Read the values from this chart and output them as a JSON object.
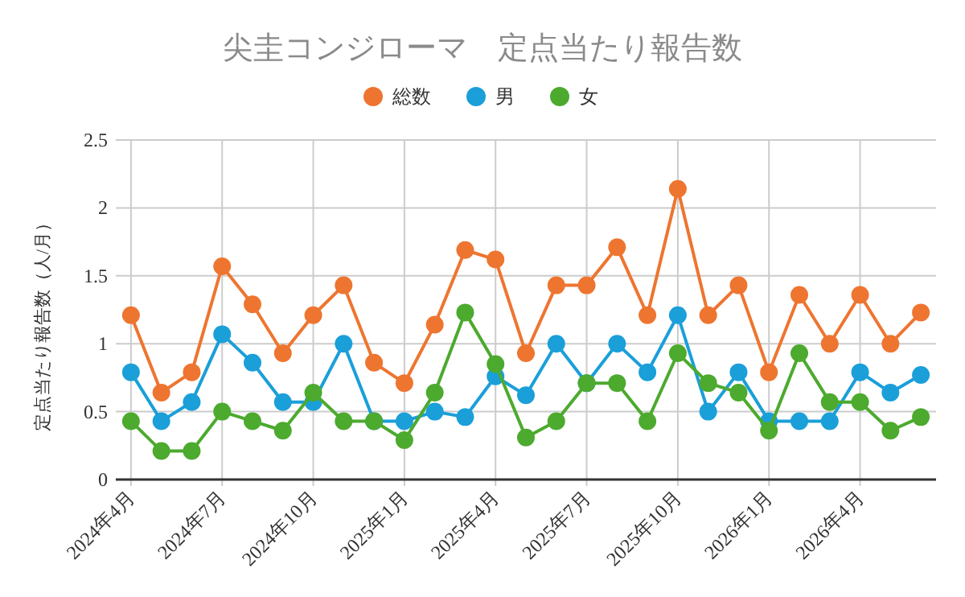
{
  "chart_data": {
    "type": "line",
    "title": "尖圭コンジローマ　定点当たり報告数",
    "ylabel": "定点当たり報告数（人/月）",
    "categories": [
      "2024年4月",
      null,
      null,
      "2024年7月",
      null,
      null,
      "2024年10月",
      null,
      null,
      "2025年1月",
      null,
      null,
      "2025年4月",
      null,
      null,
      "2025年7月",
      null,
      null,
      "2025年10月",
      null,
      null,
      "2026年1月",
      null,
      null,
      "2026年4月",
      null,
      null
    ],
    "series": [
      {
        "name": "総数",
        "color": "#ee7530",
        "values": [
          1.21,
          0.64,
          0.79,
          1.57,
          1.29,
          0.93,
          1.21,
          1.43,
          0.86,
          0.71,
          1.14,
          1.69,
          1.62,
          0.93,
          1.43,
          1.43,
          1.71,
          1.21,
          2.14,
          1.21,
          1.43,
          0.79,
          1.36,
          1.0,
          1.36,
          1.0,
          1.23
        ]
      },
      {
        "name": "男",
        "color": "#1a9fd9",
        "values": [
          0.79,
          0.43,
          0.57,
          1.07,
          0.86,
          0.57,
          0.57,
          1.0,
          0.43,
          0.43,
          0.5,
          0.46,
          0.76,
          0.62,
          1.0,
          0.71,
          1.0,
          0.79,
          1.21,
          0.5,
          0.79,
          0.43,
          0.43,
          0.43,
          0.79,
          0.64,
          0.77
        ]
      },
      {
        "name": "女",
        "color": "#4caa2e",
        "values": [
          0.43,
          0.21,
          0.21,
          0.5,
          0.43,
          0.36,
          0.64,
          0.43,
          0.43,
          0.29,
          0.64,
          1.23,
          0.85,
          0.31,
          0.43,
          0.71,
          0.71,
          0.43,
          0.93,
          0.71,
          0.64,
          0.36,
          0.93,
          0.57,
          0.57,
          0.36,
          0.46
        ]
      }
    ],
    "ylim": [
      0,
      2.5
    ],
    "yticks": [
      0,
      0.5,
      1,
      1.5,
      2,
      2.5
    ],
    "grid": true,
    "legend": "top",
    "marker": "circle",
    "line_style": "solid"
  }
}
